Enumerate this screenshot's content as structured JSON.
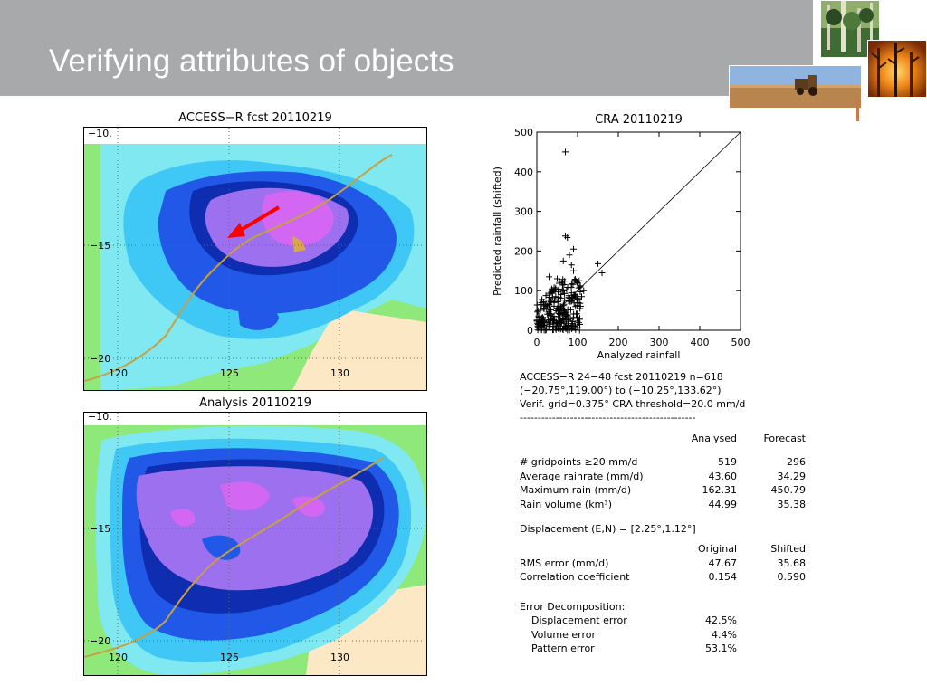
{
  "slide": {
    "title": "Verifying attributes of objects"
  },
  "photos": [
    {
      "name": "forest-photo",
      "colors": [
        "#3f6b35",
        "#8fae6a",
        "#2c4a22"
      ]
    },
    {
      "name": "fire-photo",
      "colors": [
        "#e06a10",
        "#f7b23a",
        "#7a2a05"
      ]
    },
    {
      "name": "farm-photo",
      "colors": [
        "#b8854f",
        "#7aa3d6",
        "#5a3b1f"
      ]
    }
  ],
  "maps": {
    "forecast": {
      "title": "ACCESS−R fcst 20110219",
      "lat_labels": [
        "−10.",
        "−15",
        "−20"
      ],
      "lon_labels": [
        "120",
        "125",
        "130"
      ]
    },
    "analysis": {
      "title": "Analysis 20110219",
      "lat_labels": [
        "−10.",
        "−15",
        "−20"
      ],
      "lon_labels": [
        "120",
        "125",
        "130"
      ]
    },
    "colors": {
      "land_dry": "#fde8c6",
      "light_green": "#8ee87a",
      "light_cyan": "#7fe8f0",
      "cyan": "#3fc8f5",
      "blue": "#2258e8",
      "dark_blue": "#0f2db0",
      "violet": "#9c70ee",
      "magenta": "#d366f2",
      "coast": "#c8a040",
      "arrow": "#ff0000"
    }
  },
  "chart_data": {
    "type": "scatter",
    "title": "CRA  20110219",
    "xlabel": "Analyzed rainfall",
    "ylabel": "Predicted rainfall (shifted)",
    "xlim": [
      0,
      500
    ],
    "ylim": [
      0,
      500
    ],
    "x_ticks": [
      "0",
      "100",
      "200",
      "300",
      "400",
      "500"
    ],
    "y_ticks": [
      "0",
      "100",
      "200",
      "300",
      "400",
      "500"
    ],
    "reference_line": {
      "from": [
        0,
        0
      ],
      "to": [
        500,
        500
      ]
    },
    "outlier_points": [
      [
        70,
        450
      ],
      [
        70,
        238
      ],
      [
        75,
        234
      ],
      [
        90,
        205
      ],
      [
        150,
        168
      ],
      [
        160,
        145
      ],
      [
        65,
        175
      ],
      [
        80,
        190
      ],
      [
        100,
        120
      ],
      [
        115,
        100
      ],
      [
        90,
        150
      ],
      [
        30,
        135
      ],
      [
        50,
        130
      ],
      [
        85,
        165
      ],
      [
        110,
        85
      ],
      [
        95,
        60
      ]
    ],
    "cluster": {
      "x_range": [
        0,
        110
      ],
      "y_range": [
        0,
        130
      ],
      "count": 260
    }
  },
  "stats": {
    "header_lines": [
      "ACCESS−R 24−48 fcst 20110219   n=618",
      "(−20.75°,119.00°) to (−10.25°,133.62°)",
      "Verif. grid=0.375°   CRA threshold=20.0 mm/d"
    ],
    "dashes": "-------------------------------------------------",
    "col_headers": [
      "Analysed",
      "Forecast"
    ],
    "rows": [
      {
        "label": "# gridpoints ≥20 mm/d",
        "a": "519",
        "f": "296"
      },
      {
        "label": "Average rainrate (mm/d)",
        "a": "43.60",
        "f": "34.29"
      },
      {
        "label": "Maximum rain (mm/d)",
        "a": "162.31",
        "f": "450.79"
      },
      {
        "label": "Rain volume (km³)",
        "a": "44.99",
        "f": "35.38"
      }
    ],
    "displacement": "Displacement (E,N) = [2.25°,1.12°]",
    "col_headers2": [
      "Original",
      "Shifted"
    ],
    "rows2": [
      {
        "label": "RMS error (mm/d)",
        "a": "47.67",
        "f": "35.68"
      },
      {
        "label": "Correlation coefficient",
        "a": "0.154",
        "f": "0.590"
      }
    ],
    "decomp_title": "Error Decomposition:",
    "decomp": [
      {
        "label": "Displacement error",
        "v": "42.5%"
      },
      {
        "label": "Volume error",
        "v": "4.4%"
      },
      {
        "label": "Pattern error",
        "v": "53.1%"
      }
    ]
  }
}
